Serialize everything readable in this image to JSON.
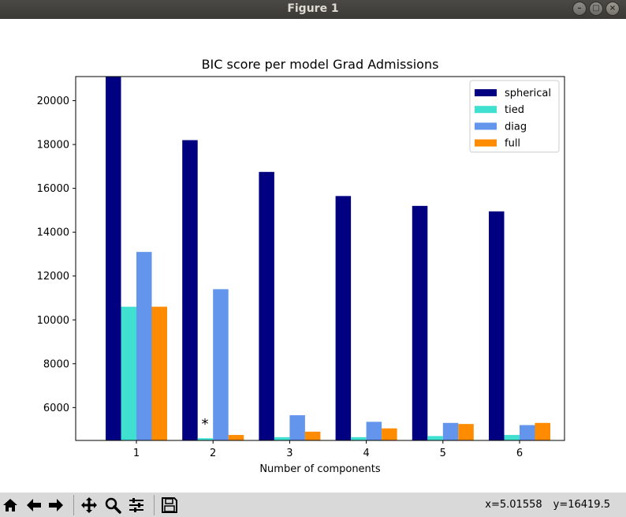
{
  "window": {
    "title": "Figure 1"
  },
  "toolbar": {
    "buttons": [
      {
        "name": "home-button",
        "icon": "home-icon"
      },
      {
        "name": "back-button",
        "icon": "arrow-left-icon"
      },
      {
        "name": "forward-button",
        "icon": "arrow-right-icon"
      },
      {
        "name": "pan-button",
        "icon": "move-icon"
      },
      {
        "name": "zoom-button",
        "icon": "magnifier-icon"
      },
      {
        "name": "configure-subplots-button",
        "icon": "sliders-icon"
      },
      {
        "name": "save-button",
        "icon": "floppy-disk-icon"
      }
    ],
    "x_readout": "x=5.01558",
    "y_readout": "y=16419.5"
  },
  "chart_data": {
    "type": "bar",
    "title": "BIC score per model Grad Admissions",
    "xlabel": "Number of components",
    "ylabel": "",
    "categories": [
      "1",
      "2",
      "3",
      "4",
      "5",
      "6"
    ],
    "ylim": [
      4500,
      21100
    ],
    "yticks": [
      6000,
      8000,
      10000,
      12000,
      14000,
      16000,
      18000,
      20000
    ],
    "series": [
      {
        "name": "spherical",
        "color": "#000080",
        "values": [
          21100,
          18200,
          16750,
          15650,
          15200,
          14950
        ]
      },
      {
        "name": "tied",
        "color": "#40e0d0",
        "values": [
          10600,
          4600,
          4650,
          4650,
          4700,
          4750
        ]
      },
      {
        "name": "diag",
        "color": "#6495ed",
        "values": [
          13100,
          11400,
          5650,
          5350,
          5300,
          5200
        ]
      },
      {
        "name": "full",
        "color": "#ff8c00",
        "values": [
          10600,
          4750,
          4900,
          5050,
          5250,
          5300
        ]
      }
    ],
    "annotation": {
      "text": "*",
      "x": 1.9,
      "y": 5400
    },
    "legend_position": "top-right",
    "grid": false
  }
}
